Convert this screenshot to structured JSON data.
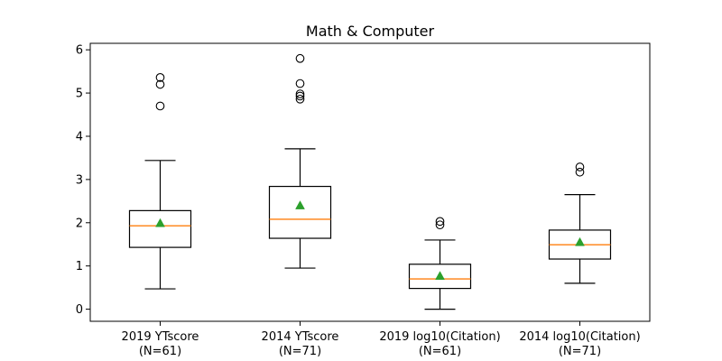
{
  "chart_data": {
    "type": "box",
    "title": "Math & Computer",
    "xlabel": "",
    "ylabel": "",
    "ylim": [
      -0.28,
      6.15
    ],
    "yticks": [
      0,
      1,
      2,
      3,
      4,
      5,
      6
    ],
    "grid": false,
    "legend": "none",
    "boxes": [
      {
        "label_line1": "2019 YTscore",
        "label_line2": "(N=61)",
        "whislo": 0.47,
        "q1": 1.43,
        "median": 1.93,
        "q3": 2.28,
        "whishi": 3.44,
        "mean": 1.99,
        "fliers": [
          4.7,
          5.2,
          5.36
        ]
      },
      {
        "label_line1": "2014 YTscore",
        "label_line2": "(N=71)",
        "whislo": 0.95,
        "q1": 1.64,
        "median": 2.08,
        "q3": 2.84,
        "whishi": 3.71,
        "mean": 2.4,
        "fliers": [
          4.86,
          4.93,
          4.98,
          5.22,
          5.8
        ]
      },
      {
        "label_line1": "2019 log10(Citation)",
        "label_line2": "(N=61)",
        "whislo": 0.0,
        "q1": 0.48,
        "median": 0.7,
        "q3": 1.04,
        "whishi": 1.6,
        "mean": 0.77,
        "fliers": [
          1.95,
          2.03
        ]
      },
      {
        "label_line1": "2014 log10(Citation)",
        "label_line2": "(N=71)",
        "whislo": 0.6,
        "q1": 1.16,
        "median": 1.49,
        "q3": 1.83,
        "whishi": 2.65,
        "mean": 1.55,
        "fliers": [
          3.17,
          3.29
        ]
      }
    ]
  },
  "colors": {
    "median": "#ff7f0e",
    "mean": "#2ca02c",
    "box": "#000000",
    "background": "#ffffff"
  }
}
